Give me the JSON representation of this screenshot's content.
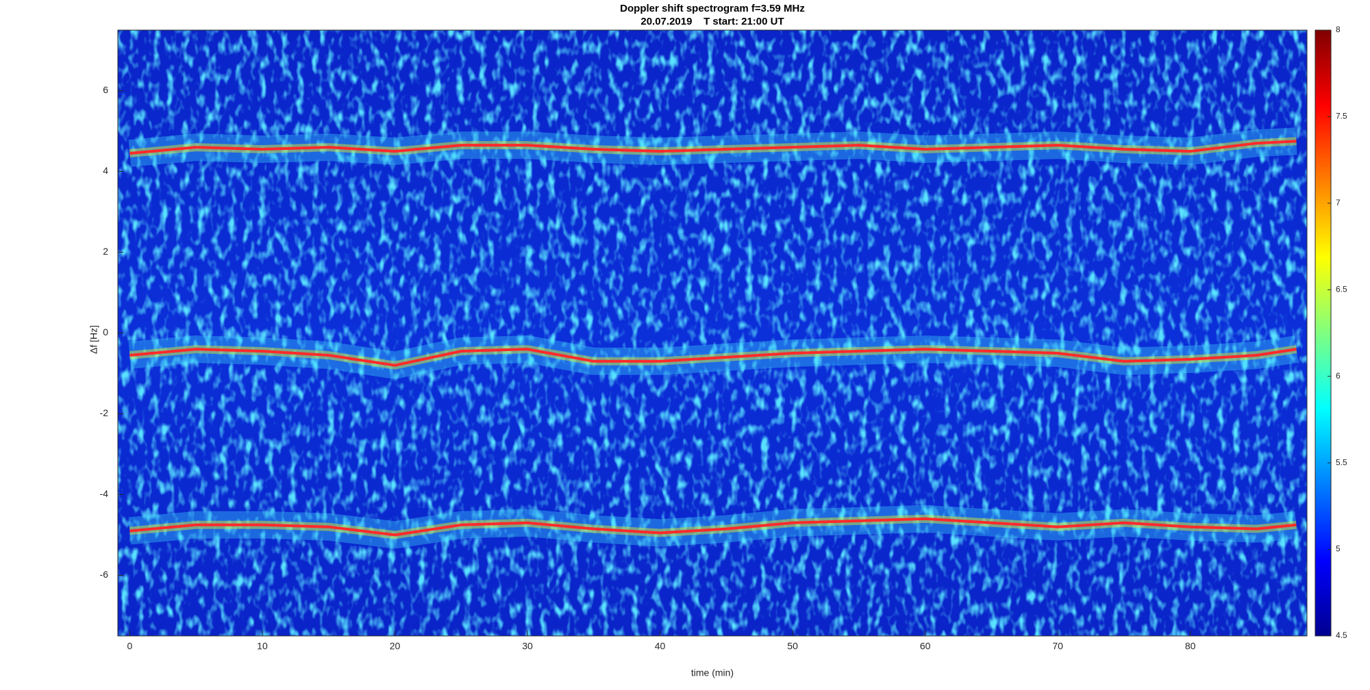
{
  "chart_data": {
    "type": "line",
    "title": "Doppler shift spectrogram f=3.59 MHz",
    "subtitle": "20.07.2019    T start: 21:00 UT",
    "x_label": "time (min)",
    "y_label": "Δf [Hz]",
    "x": [
      0,
      5,
      10,
      15,
      20,
      25,
      30,
      35,
      40,
      45,
      50,
      55,
      60,
      65,
      70,
      75,
      80,
      85,
      88
    ],
    "series": [
      {
        "color": "#ff2a2a",
        "values": [
          4.45,
          4.6,
          4.55,
          4.6,
          4.5,
          4.65,
          4.65,
          4.55,
          4.5,
          4.55,
          4.6,
          4.65,
          4.55,
          4.6,
          4.65,
          4.55,
          4.5,
          4.7,
          4.75
        ]
      },
      {
        "color": "#ff2a2a",
        "values": [
          -0.55,
          -0.4,
          -0.45,
          -0.55,
          -0.8,
          -0.45,
          -0.4,
          -0.7,
          -0.7,
          -0.6,
          -0.5,
          -0.45,
          -0.4,
          -0.45,
          -0.5,
          -0.7,
          -0.65,
          -0.55,
          -0.4
        ]
      },
      {
        "color": "#ff2a2a",
        "values": [
          -4.9,
          -4.75,
          -4.75,
          -4.8,
          -5.0,
          -4.75,
          -4.7,
          -4.85,
          -4.95,
          -4.85,
          -4.7,
          -4.65,
          -4.6,
          -4.7,
          -4.8,
          -4.7,
          -4.8,
          -4.85,
          -4.75
        ]
      }
    ],
    "xlim": [
      -0.9,
      88.8
    ],
    "ylim": [
      -7.5,
      7.5
    ],
    "xticks": [
      0,
      10,
      20,
      30,
      40,
      50,
      60,
      70,
      80
    ],
    "yticks": [
      -6,
      -4,
      -2,
      0,
      2,
      4,
      6
    ],
    "colorbar": {
      "lim": [
        4.5,
        8
      ],
      "ticks": [
        4.5,
        5,
        5.5,
        6,
        6.5,
        7,
        7.5,
        8
      ]
    }
  }
}
